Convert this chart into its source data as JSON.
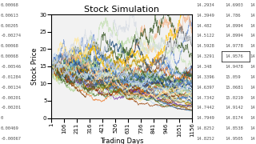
{
  "title": "Stock Simulation",
  "xlabel": "Trading Days",
  "ylabel": "Stock Price",
  "ylim": [
    0,
    30
  ],
  "xlim": [
    1,
    1156
  ],
  "x_ticks": [
    1,
    106,
    211,
    316,
    421,
    526,
    631,
    736,
    841,
    946,
    1051,
    1156
  ],
  "y_ticks": [
    0,
    5,
    10,
    15,
    20,
    25,
    30
  ],
  "num_simulations": 50,
  "num_days": 1156,
  "S0": 15.0,
  "mu": -0.0003,
  "sigma": 0.018,
  "seed": 7,
  "bg_color": "#f0f0f0",
  "plot_bg": "#f0f0f0",
  "title_fontsize": 8,
  "axis_fontsize": 6,
  "tick_fontsize": 5,
  "left_labels": [
    "0.00068",
    "0.00613",
    "0.00205",
    "-0.00274",
    "0.00068",
    "0.00068",
    "-0.00546",
    "-0.01284",
    "-0.00134",
    "-0.00201",
    "-0.00201",
    "0",
    "0.00469",
    "-0.00067"
  ],
  "right_col1": [
    "14.2934",
    "14.3949",
    "14.482",
    "14.5122",
    "14.5928",
    "14.3291",
    "14.348",
    "14.3396",
    "14.6397",
    "14.7342",
    "14.7442",
    "14.7949",
    "14.8252",
    "14.8252"
  ],
  "right_col2": [
    "14.6903",
    "14.786",
    "14.8994",
    "14.8994",
    "14.9778",
    "14.9576",
    "14.9478",
    "15.059",
    "15.0681",
    "15.0219",
    "14.9142",
    "14.8174",
    "14.8538",
    "14.9505"
  ],
  "right_col3": [
    "14",
    "1",
    "14",
    "14",
    "14",
    "14",
    "14",
    "14",
    "14",
    "14",
    "14",
    "14",
    "14",
    "14"
  ]
}
